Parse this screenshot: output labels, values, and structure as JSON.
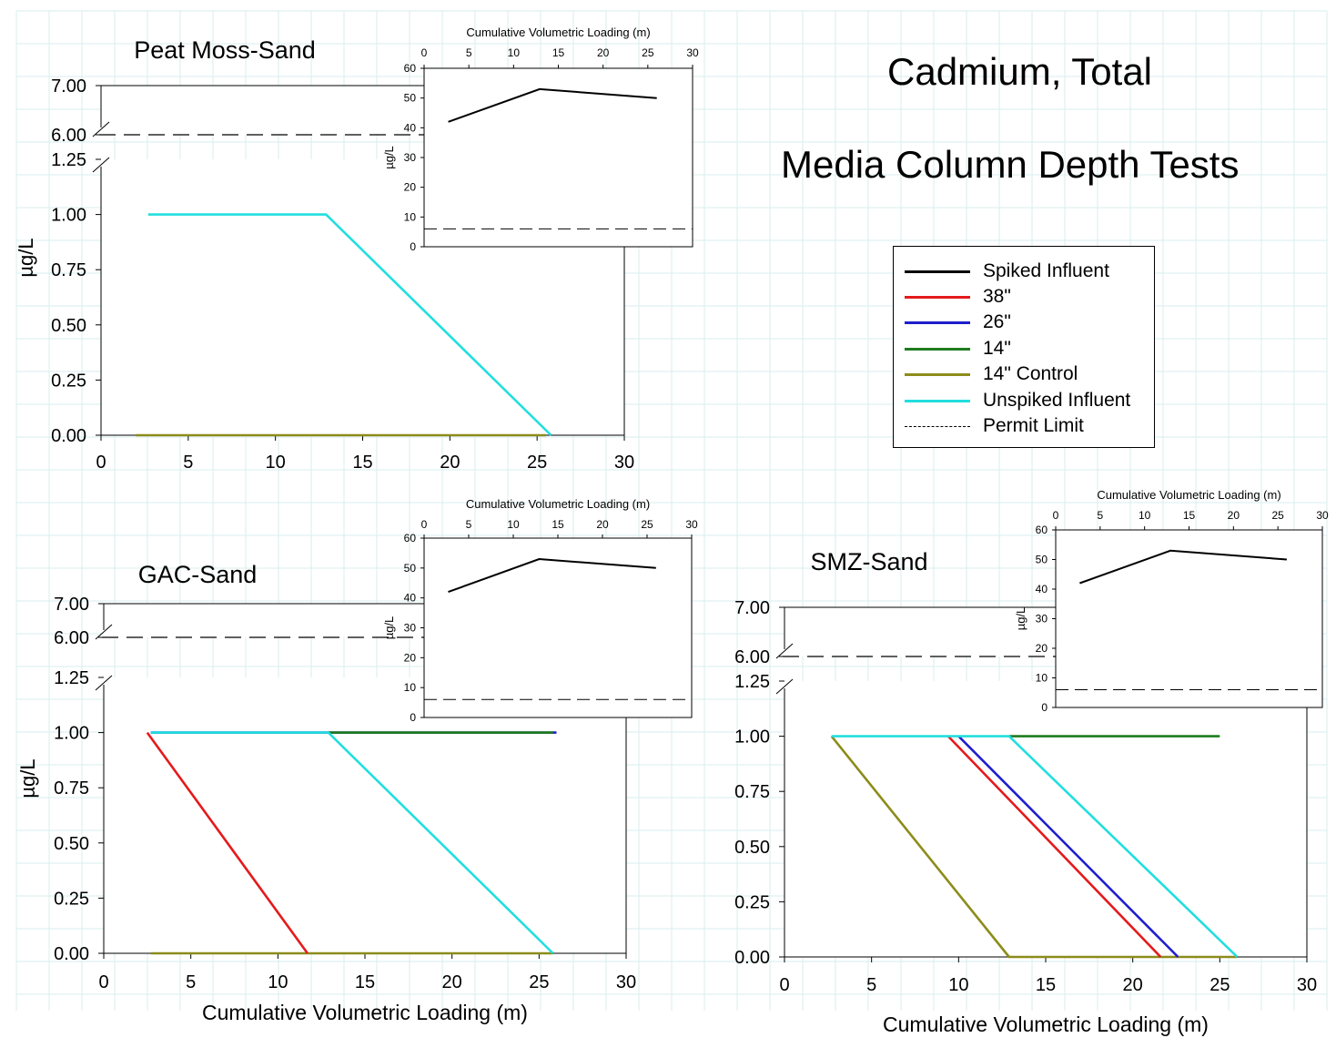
{
  "figure": {
    "title_line1": "Cadmium, Total",
    "title_line2": "Media Column Depth Tests",
    "colors": {
      "spiked_influent": "#000000",
      "38in": "#e41a1c",
      "26in": "#1f1fcc",
      "14in": "#1e7b1e",
      "14in_control": "#8c8c1a",
      "unspiked_influent": "#22dede",
      "permit_limit": "#000000",
      "grid": "#d9eeee"
    }
  },
  "legend": {
    "items": [
      {
        "label": "Spiked Influent",
        "color": "#000000",
        "style": "solid"
      },
      {
        "label": "38\"",
        "color": "#e41a1c",
        "style": "solid"
      },
      {
        "label": "26\"",
        "color": "#1f1fcc",
        "style": "solid"
      },
      {
        "label": "14\"",
        "color": "#1e7b1e",
        "style": "solid"
      },
      {
        "label": "14\" Control",
        "color": "#8c8c1a",
        "style": "solid"
      },
      {
        "label": "Unspiked Influent",
        "color": "#22dede",
        "style": "solid"
      },
      {
        "label": "Permit Limit",
        "color": "#000000",
        "style": "dashed"
      }
    ]
  },
  "chart_data": [
    {
      "type": "line",
      "panel": "peat",
      "title": "Peat Moss-Sand",
      "xlabel": "",
      "ylabel": "µg/L",
      "xlim": [
        0,
        30
      ],
      "xticks": [
        "0",
        "5",
        "10",
        "15",
        "20",
        "25",
        "30"
      ],
      "ylim_lower": [
        0,
        1.25
      ],
      "ylim_upper": [
        6,
        7
      ],
      "yticks_lower": [
        "0.00",
        "0.25",
        "0.50",
        "0.75",
        "1.00",
        "1.25"
      ],
      "yticks_upper": [
        "6.00",
        "7.00"
      ],
      "permit_limit": 6,
      "series": [
        {
          "name": "14\" Control",
          "key": "14in_control",
          "x": [
            2,
            25.5
          ],
          "y": [
            0,
            0
          ]
        },
        {
          "name": "Unspiked Influent",
          "key": "unspiked_influent",
          "x": [
            2.7,
            12.9,
            25.8
          ],
          "y": [
            1,
            1,
            0
          ]
        }
      ],
      "inset": {
        "xlabel": "Cumulative Volumetric Loading (m)",
        "ylabel": "µg/L",
        "xlim": [
          0,
          30
        ],
        "ylim": [
          0,
          60
        ],
        "xticks": [
          "0",
          "5",
          "10",
          "15",
          "20",
          "25",
          "30"
        ],
        "yticks": [
          "0",
          "10",
          "20",
          "30",
          "40",
          "50",
          "60"
        ],
        "permit_limit": 6,
        "series": [
          {
            "name": "Spiked Influent",
            "x": [
              2.7,
              12.9,
              26
            ],
            "y": [
              42,
              53,
              50
            ]
          }
        ]
      }
    },
    {
      "type": "line",
      "panel": "gac",
      "title": "GAC-Sand",
      "xlabel": "Cumulative Volumetric Loading (m)",
      "ylabel": "µg/L",
      "xlim": [
        0,
        30
      ],
      "xticks": [
        "0",
        "5",
        "10",
        "15",
        "20",
        "25",
        "30"
      ],
      "ylim_lower": [
        0,
        1.25
      ],
      "ylim_upper": [
        6,
        7
      ],
      "yticks_lower": [
        "0.00",
        "0.25",
        "0.50",
        "0.75",
        "1.00",
        "1.25"
      ],
      "yticks_upper": [
        "6.00",
        "7.00"
      ],
      "permit_limit": 6,
      "series": [
        {
          "name": "26\"",
          "key": "26in",
          "x": [
            2.7,
            26
          ],
          "y": [
            1,
            1
          ]
        },
        {
          "name": "14\"",
          "key": "14in",
          "x": [
            12.9,
            25.8
          ],
          "y": [
            1,
            1
          ]
        },
        {
          "name": "14\" Control",
          "key": "14in_control",
          "x": [
            2.7,
            25.8
          ],
          "y": [
            0,
            0
          ]
        },
        {
          "name": "38\"",
          "key": "38in",
          "x": [
            2.5,
            11.7
          ],
          "y": [
            1,
            0
          ]
        },
        {
          "name": "Unspiked Influent",
          "key": "unspiked_influent",
          "x": [
            2.7,
            12.9,
            25.8
          ],
          "y": [
            1,
            1,
            0
          ]
        }
      ],
      "inset": {
        "xlabel": "Cumulative Volumetric Loading (m)",
        "ylabel": "µg/L",
        "xlim": [
          0,
          30
        ],
        "ylim": [
          0,
          60
        ],
        "xticks": [
          "0",
          "5",
          "10",
          "15",
          "20",
          "25",
          "30"
        ],
        "yticks": [
          "0",
          "10",
          "20",
          "30",
          "40",
          "50",
          "60"
        ],
        "permit_limit": 6,
        "series": [
          {
            "name": "Spiked Influent",
            "x": [
              2.7,
              12.9,
              26
            ],
            "y": [
              42,
              53,
              50
            ]
          }
        ]
      }
    },
    {
      "type": "line",
      "panel": "smz",
      "title": "SMZ-Sand",
      "xlabel": "Cumulative Volumetric Loading (m)",
      "ylabel": "",
      "xlim": [
        0,
        30
      ],
      "xticks": [
        "0",
        "5",
        "10",
        "15",
        "20",
        "25",
        "30"
      ],
      "ylim_lower": [
        0,
        1.25
      ],
      "ylim_upper": [
        6,
        7
      ],
      "yticks_lower": [
        "0.00",
        "0.25",
        "0.50",
        "0.75",
        "1.00",
        "1.25"
      ],
      "yticks_upper": [
        "6.00",
        "7.00"
      ],
      "permit_limit": 6,
      "series": [
        {
          "name": "14\"",
          "key": "14in",
          "x": [
            12.9,
            25
          ],
          "y": [
            1,
            1
          ]
        },
        {
          "name": "14\" Control",
          "key": "14in_control",
          "x": [
            2.7,
            12.9,
            26
          ],
          "y": [
            1,
            0,
            0
          ]
        },
        {
          "name": "38\"",
          "key": "38in",
          "x": [
            9.4,
            21.6
          ],
          "y": [
            1,
            0
          ]
        },
        {
          "name": "26\"",
          "key": "26in",
          "x": [
            10,
            22.6
          ],
          "y": [
            1,
            0
          ]
        },
        {
          "name": "Unspiked Influent",
          "key": "unspiked_influent",
          "x": [
            2.7,
            12.9,
            26
          ],
          "y": [
            1,
            1,
            0
          ]
        }
      ],
      "inset": {
        "xlabel": "Cumulative Volumetric Loading (m)",
        "ylabel": "µg/L",
        "xlim": [
          0,
          30
        ],
        "ylim": [
          0,
          60
        ],
        "xticks": [
          "0",
          "5",
          "10",
          "15",
          "20",
          "25",
          "30"
        ],
        "yticks": [
          "0",
          "10",
          "20",
          "30",
          "40",
          "50",
          "60"
        ],
        "permit_limit": 6,
        "series": [
          {
            "name": "Spiked Influent",
            "x": [
              2.7,
              12.9,
              26
            ],
            "y": [
              42,
              53,
              50
            ]
          }
        ]
      }
    }
  ]
}
